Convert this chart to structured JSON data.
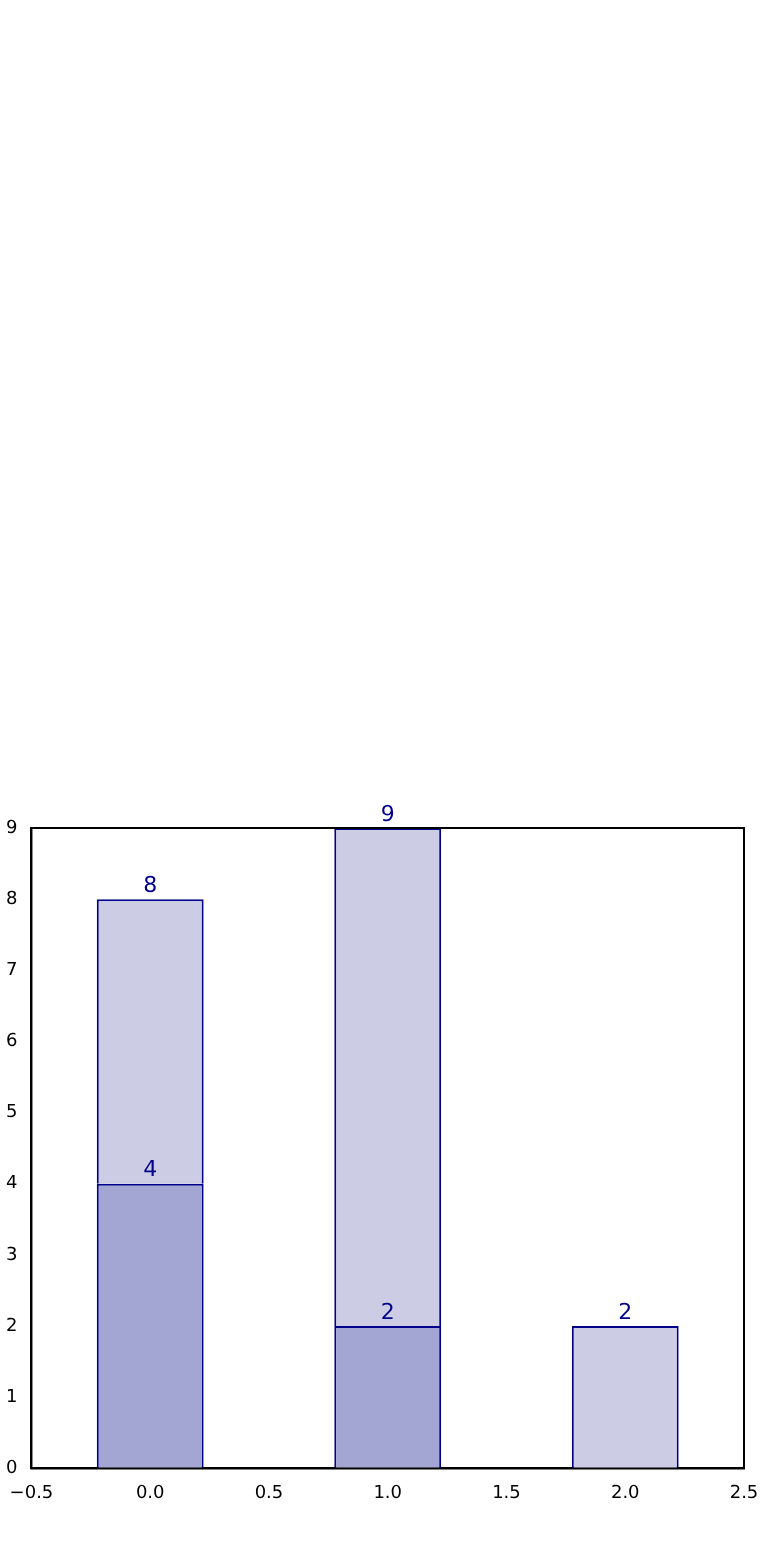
{
  "chart_data": {
    "type": "bar",
    "x": [
      0,
      1,
      2
    ],
    "stacked": true,
    "series": [
      {
        "color": "#a3a6d3",
        "values": [
          4,
          2,
          null
        ],
        "value_labels": [
          "4",
          "2",
          null
        ]
      },
      {
        "color": "#ccccE5",
        "values": [
          4,
          7,
          2
        ]
      }
    ],
    "totals": [
      "8",
      "9",
      "2"
    ],
    "xlim": [
      -0.5,
      2.5
    ],
    "xticks": [
      {
        "value": -0.5,
        "label": "−0.5"
      },
      {
        "value": 0,
        "label": "0.0"
      },
      {
        "value": 0.5,
        "label": "0.5"
      },
      {
        "value": 1,
        "label": "1.0"
      },
      {
        "value": 1.5,
        "label": "1.5"
      },
      {
        "value": 2,
        "label": "2.0"
      },
      {
        "value": 2.5,
        "label": "2.5"
      }
    ],
    "ylim": [
      0,
      9
    ],
    "yticks": [
      0,
      1,
      2,
      3,
      4,
      5,
      6,
      7,
      8,
      9
    ],
    "grid": false,
    "legend": false
  }
}
